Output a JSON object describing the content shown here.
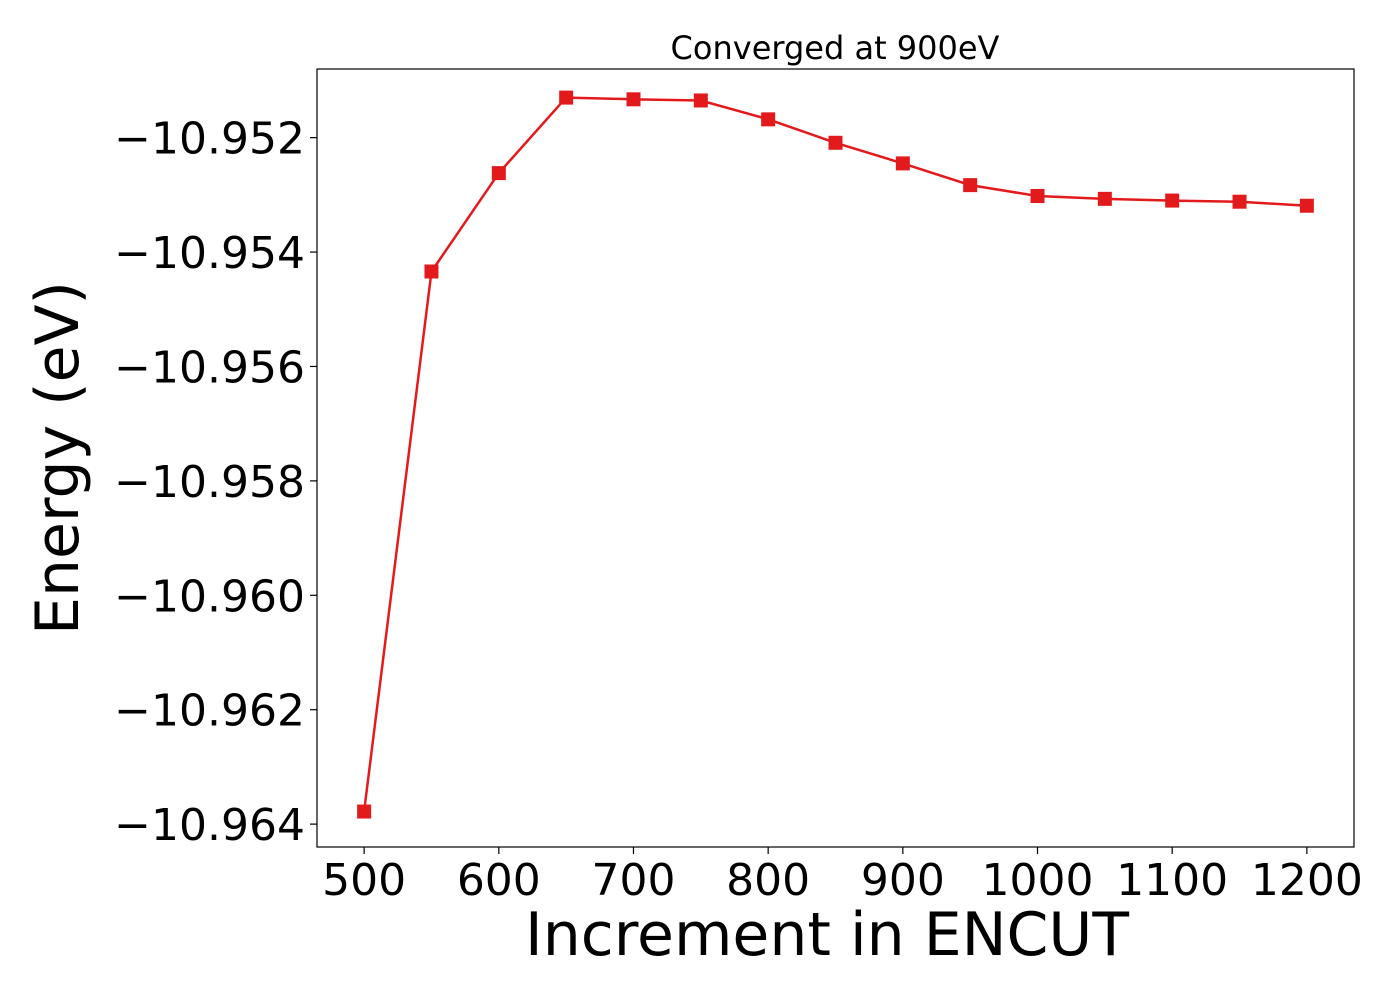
{
  "chart_data": {
    "type": "line",
    "title": "Converged at 900eV",
    "xlabel": "Increment in ENCUT",
    "ylabel": "Energy (eV)",
    "xlim": [
      465,
      1235
    ],
    "ylim": [
      -10.9644,
      -10.9508
    ],
    "xticks": [
      500,
      600,
      700,
      800,
      900,
      1000,
      1100,
      1200
    ],
    "xtick_labels": [
      "500",
      "600",
      "700",
      "800",
      "900",
      "1000",
      "1100",
      "1200"
    ],
    "yticks": [
      -10.952,
      -10.954,
      -10.956,
      -10.958,
      -10.96,
      -10.962,
      -10.964
    ],
    "ytick_labels": [
      "−10.952",
      "−10.954",
      "−10.956",
      "−10.958",
      "−10.960",
      "−10.962",
      "−10.964"
    ],
    "grid": false,
    "series": [
      {
        "color": "#e31a1c",
        "marker": "square",
        "x": [
          500,
          550,
          600,
          650,
          700,
          750,
          800,
          850,
          900,
          950,
          1000,
          1050,
          1100,
          1150,
          1200
        ],
        "y": [
          -10.96378,
          -10.95434,
          -10.95262,
          -10.9513,
          -10.95133,
          -10.95135,
          -10.95168,
          -10.95209,
          -10.95245,
          -10.95283,
          -10.95302,
          -10.95307,
          -10.9531,
          -10.95312,
          -10.95319
        ]
      }
    ]
  }
}
